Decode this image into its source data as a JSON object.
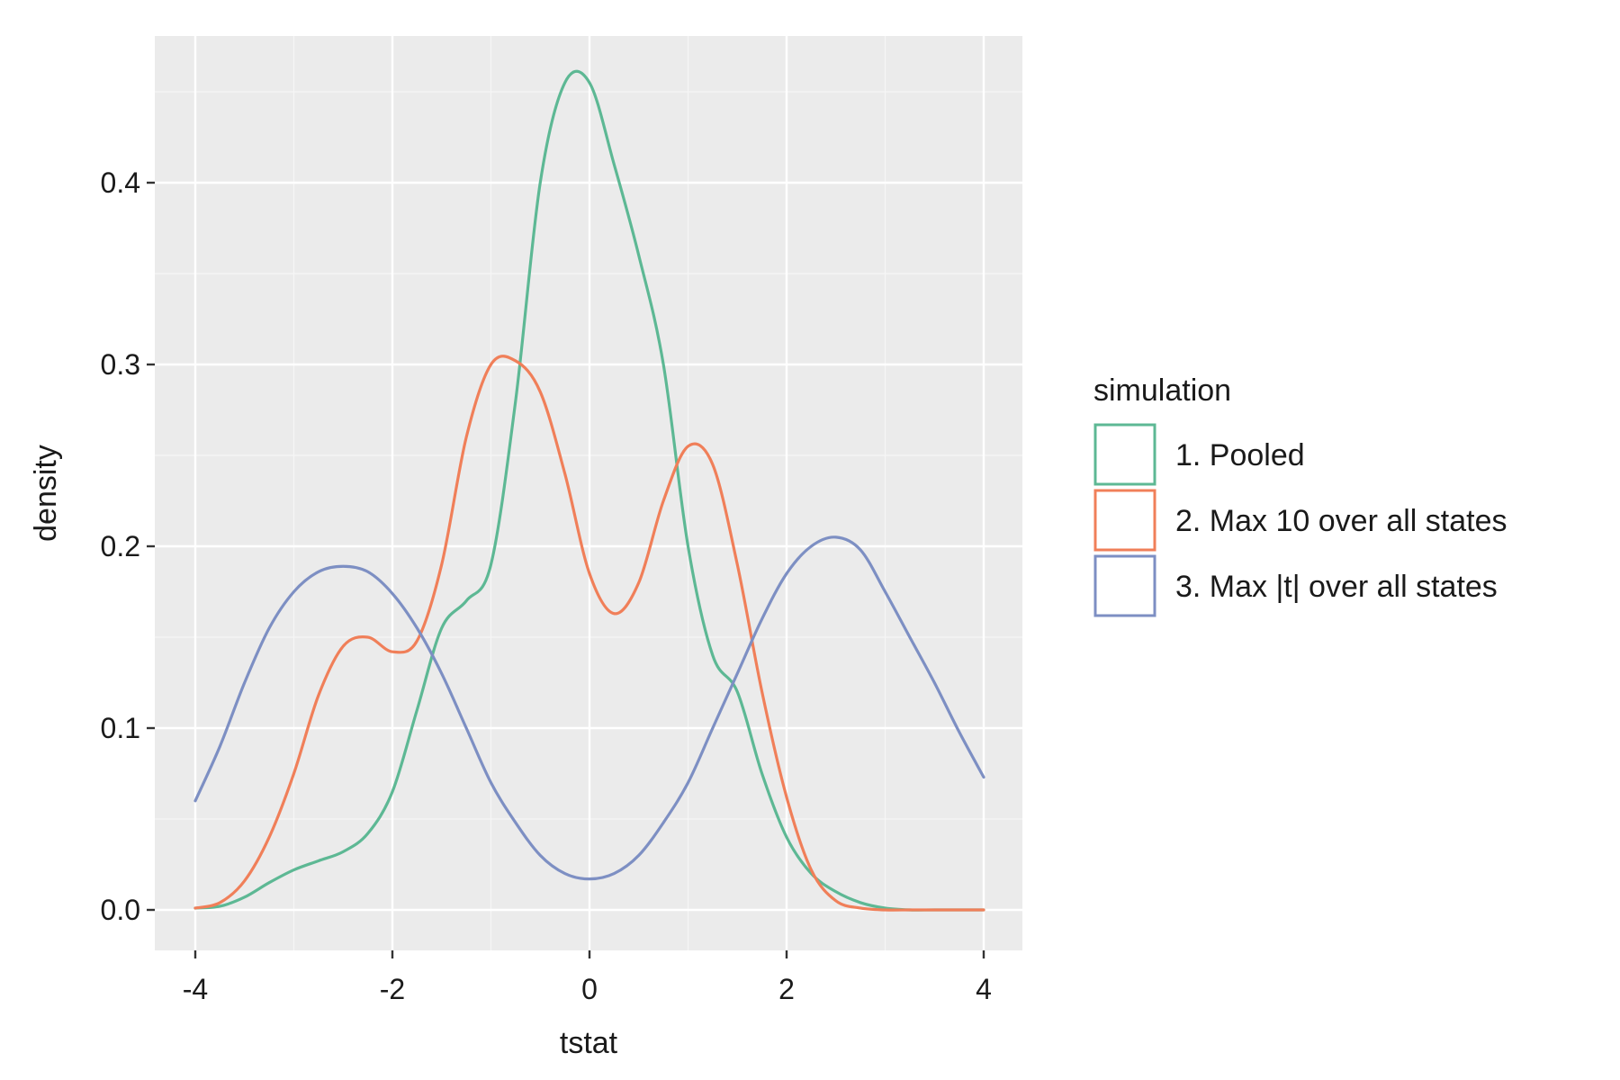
{
  "chart_data": {
    "type": "line",
    "title": "",
    "xlabel": "tstat",
    "ylabel": "density",
    "xlim": [
      -4,
      4
    ],
    "ylim": [
      0,
      0.45
    ],
    "x_ticks": [
      -4,
      -2,
      0,
      2,
      4
    ],
    "x_tick_labels": [
      "-4",
      "-2",
      "0",
      "2",
      "4"
    ],
    "y_ticks": [
      0.0,
      0.1,
      0.2,
      0.3,
      0.4
    ],
    "y_tick_labels": [
      "0.0",
      "0.1",
      "0.2",
      "0.3",
      "0.4"
    ],
    "grid": true,
    "legend": {
      "title": "simulation",
      "position": "right"
    },
    "series": [
      {
        "name": "1. Pooled",
        "color": "#5db894",
        "x": [
          -4,
          -3.75,
          -3.5,
          -3.25,
          -3,
          -2.75,
          -2.5,
          -2.25,
          -2,
          -1.75,
          -1.5,
          -1.25,
          -1,
          -0.75,
          -0.5,
          -0.25,
          0,
          0.25,
          0.5,
          0.75,
          1,
          1.25,
          1.5,
          1.75,
          2,
          2.25,
          2.5,
          2.75,
          3,
          3.25,
          3.5,
          3.75,
          4
        ],
        "y": [
          0.001,
          0.002,
          0.007,
          0.015,
          0.022,
          0.027,
          0.032,
          0.042,
          0.065,
          0.11,
          0.155,
          0.17,
          0.19,
          0.28,
          0.4,
          0.455,
          0.455,
          0.41,
          0.36,
          0.3,
          0.2,
          0.14,
          0.12,
          0.075,
          0.04,
          0.02,
          0.01,
          0.004,
          0.001,
          0.0,
          0.0,
          0.0,
          0.0
        ]
      },
      {
        "name": "2. Max 10 over all states",
        "color": "#f07f59",
        "x": [
          -4,
          -3.75,
          -3.5,
          -3.25,
          -3,
          -2.75,
          -2.5,
          -2.25,
          -2,
          -1.75,
          -1.5,
          -1.25,
          -1,
          -0.75,
          -0.5,
          -0.25,
          0,
          0.25,
          0.5,
          0.75,
          1,
          1.25,
          1.5,
          1.75,
          2,
          2.25,
          2.5,
          2.75,
          3,
          3.25,
          3.5,
          3.75,
          4
        ],
        "y": [
          0.001,
          0.004,
          0.016,
          0.04,
          0.075,
          0.118,
          0.145,
          0.15,
          0.142,
          0.148,
          0.19,
          0.26,
          0.3,
          0.302,
          0.285,
          0.24,
          0.185,
          0.163,
          0.18,
          0.225,
          0.255,
          0.245,
          0.19,
          0.12,
          0.062,
          0.022,
          0.005,
          0.001,
          0.0,
          0.0,
          0.0,
          0.0,
          0.0
        ]
      },
      {
        "name": "3. Max |t| over all states",
        "color": "#7d8fc3",
        "x": [
          -4,
          -3.75,
          -3.5,
          -3.25,
          -3,
          -2.75,
          -2.5,
          -2.25,
          -2,
          -1.75,
          -1.5,
          -1.25,
          -1,
          -0.75,
          -0.5,
          -0.25,
          0,
          0.25,
          0.5,
          0.75,
          1,
          1.25,
          1.5,
          1.75,
          2,
          2.25,
          2.5,
          2.75,
          3,
          3.25,
          3.5,
          3.75,
          4
        ],
        "y": [
          0.06,
          0.09,
          0.125,
          0.155,
          0.175,
          0.186,
          0.189,
          0.186,
          0.174,
          0.155,
          0.13,
          0.1,
          0.07,
          0.048,
          0.03,
          0.02,
          0.017,
          0.02,
          0.03,
          0.048,
          0.07,
          0.1,
          0.13,
          0.16,
          0.185,
          0.2,
          0.205,
          0.198,
          0.175,
          0.15,
          0.125,
          0.098,
          0.073
        ]
      }
    ]
  }
}
